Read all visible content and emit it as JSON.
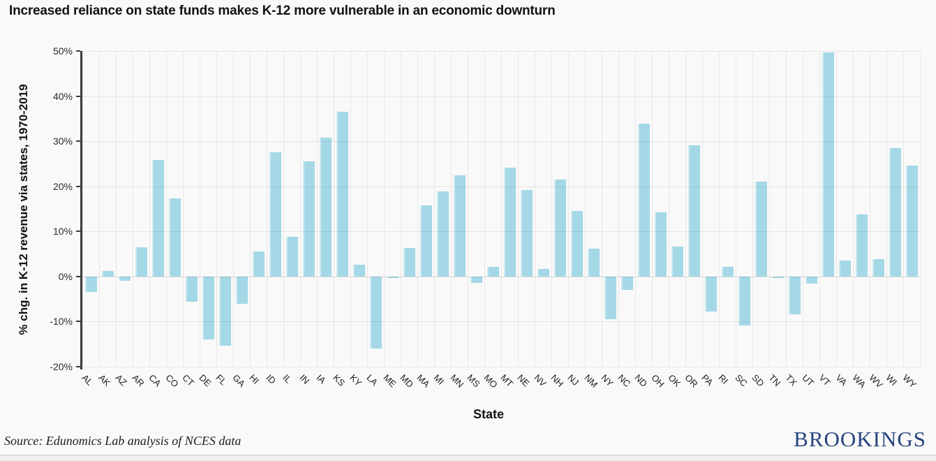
{
  "title": "Increased reliance on state funds makes K-12 more vulnerable in an economic downturn",
  "source": "Source: Edunomics Lab analysis of NCES data",
  "logo_text": "BROOKINGS",
  "colors": {
    "bar": "#a5d8e6",
    "logo": "#26457d",
    "axis": "#3b3b3b",
    "background": "#f9f9f9"
  },
  "chart_data": {
    "type": "bar",
    "title": "Increased reliance on state funds makes K-12 more vulnerable in an economic downturn",
    "xlabel": "State",
    "ylabel": "% chg. in K-12 revenue via states, 1970-2019",
    "ylim": [
      -20,
      50
    ],
    "ytick_step": 10,
    "ytick_suffix": "%",
    "grid": true,
    "legend": false,
    "categories": [
      "AL",
      "AK",
      "AZ",
      "AR",
      "CA",
      "CO",
      "CT",
      "DE",
      "FL",
      "GA",
      "HI",
      "ID",
      "IL",
      "IN",
      "IA",
      "KS",
      "KY",
      "LA",
      "ME",
      "MD",
      "MA",
      "MI",
      "MN",
      "MS",
      "MO",
      "MT",
      "NE",
      "NV",
      "NH",
      "NJ",
      "NM",
      "NY",
      "NC",
      "ND",
      "OH",
      "OK",
      "OR",
      "PA",
      "RI",
      "SC",
      "SD",
      "TN",
      "TX",
      "UT",
      "VT",
      "VA",
      "WA",
      "WV",
      "WI",
      "WY"
    ],
    "values": [
      -3.4,
      1.2,
      -1.0,
      6.5,
      25.9,
      17.3,
      -5.6,
      -14.0,
      -15.3,
      -6.1,
      5.6,
      27.6,
      8.8,
      25.6,
      30.8,
      36.6,
      2.6,
      -15.9,
      -0.4,
      6.3,
      15.8,
      18.8,
      22.5,
      -1.4,
      2.1,
      24.2,
      19.2,
      1.7,
      21.5,
      14.5,
      6.2,
      -9.4,
      -2.9,
      33.9,
      14.2,
      6.6,
      29.1,
      -7.8,
      2.2,
      -10.9,
      21.0,
      -0.3,
      -8.4,
      -1.6,
      49.7,
      3.5,
      13.8,
      3.8,
      28.4,
      24.6
    ]
  }
}
